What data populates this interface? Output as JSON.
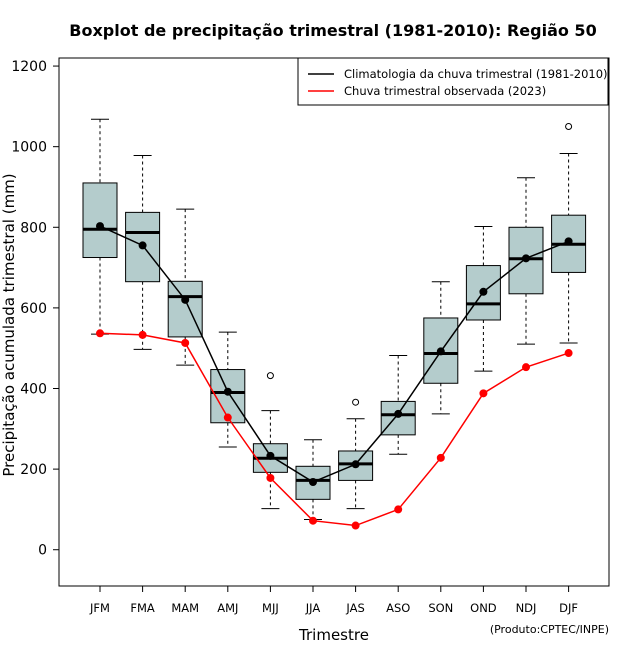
{
  "chart_data": {
    "type": "boxplot",
    "title": "Boxplot de precipitação trimestral (1981-2010): Região 50",
    "xlabel": "Trimestre",
    "ylabel": "Precipitação acumulada trimestral (mm)",
    "credit": "(Produto:CPTEC/INPE)",
    "ylim": [
      -90,
      1220
    ],
    "yticks": [
      0,
      200,
      400,
      600,
      800,
      1000,
      1200
    ],
    "categories": [
      "JFM",
      "FMA",
      "MAM",
      "AMJ",
      "MJJ",
      "JJA",
      "JAS",
      "ASO",
      "SON",
      "OND",
      "NDJ",
      "DJF"
    ],
    "boxes": [
      {
        "min": 535,
        "q1": 725,
        "median": 795,
        "q3": 910,
        "max": 1068,
        "outliers": []
      },
      {
        "min": 497,
        "q1": 665,
        "median": 787,
        "q3": 837,
        "max": 978,
        "outliers": []
      },
      {
        "min": 458,
        "q1": 528,
        "median": 628,
        "q3": 666,
        "max": 845,
        "outliers": []
      },
      {
        "min": 255,
        "q1": 315,
        "median": 390,
        "q3": 447,
        "max": 540,
        "outliers": []
      },
      {
        "min": 102,
        "q1": 192,
        "median": 227,
        "q3": 263,
        "max": 345,
        "outliers": [
          432
        ]
      },
      {
        "min": 75,
        "q1": 125,
        "median": 172,
        "q3": 207,
        "max": 273,
        "outliers": []
      },
      {
        "min": 102,
        "q1": 172,
        "median": 213,
        "q3": 245,
        "max": 325,
        "outliers": [
          366
        ]
      },
      {
        "min": 237,
        "q1": 285,
        "median": 335,
        "q3": 368,
        "max": 482,
        "outliers": []
      },
      {
        "min": 337,
        "q1": 413,
        "median": 487,
        "q3": 575,
        "max": 665,
        "outliers": []
      },
      {
        "min": 443,
        "q1": 570,
        "median": 610,
        "q3": 705,
        "max": 802,
        "outliers": []
      },
      {
        "min": 510,
        "q1": 635,
        "median": 722,
        "q3": 800,
        "max": 923,
        "outliers": []
      },
      {
        "min": 513,
        "q1": 688,
        "median": 758,
        "q3": 830,
        "max": 983,
        "outliers": [
          1050
        ]
      }
    ],
    "series": [
      {
        "name": "Climatologia da chuva trimestral (1981-2010)",
        "color": "#000000",
        "values": [
          803,
          755,
          620,
          392,
          233,
          168,
          212,
          337,
          492,
          640,
          723,
          765
        ]
      },
      {
        "name": "Chuva trimestral observada (2023)",
        "color": "#ff0000",
        "values": [
          537,
          533,
          513,
          328,
          178,
          72,
          60,
          100,
          228,
          388,
          453,
          488
        ]
      }
    ],
    "box_fill": "#b4cccc"
  }
}
